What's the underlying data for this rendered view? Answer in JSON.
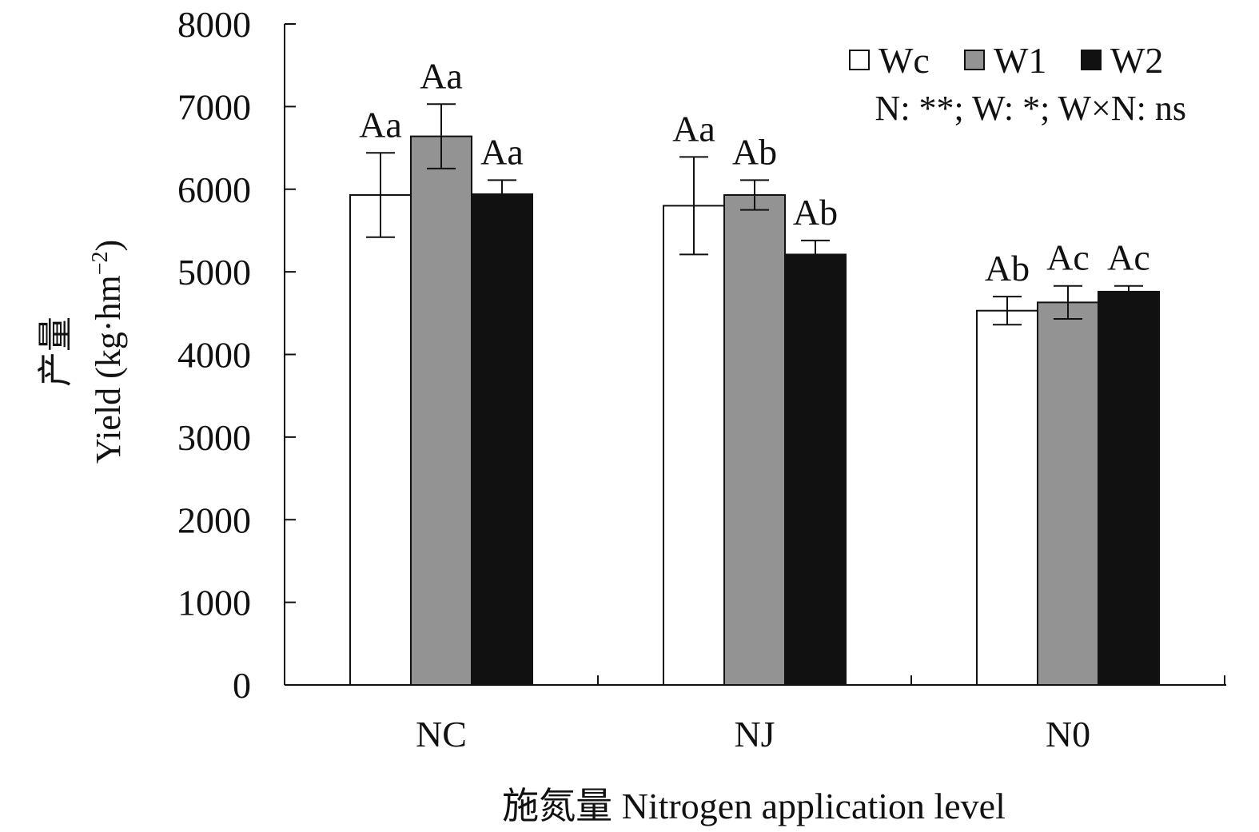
{
  "chart_data": {
    "type": "bar",
    "xlabel": "施氮量 Nitrogen application level",
    "ylabel_cn": "产量",
    "ylabel": "Yield (kg·hm",
    "ylabel_sup": "−2",
    "ylabel_close": ")",
    "ylim": [
      0,
      8000
    ],
    "yticks": [
      0,
      1000,
      2000,
      3000,
      4000,
      5000,
      6000,
      7000,
      8000
    ],
    "categories": [
      "NC",
      "NJ",
      "N0"
    ],
    "series": [
      {
        "name": "Wc",
        "color": "#ffffff",
        "values": [
          5930,
          5800,
          4530
        ],
        "errors": [
          510,
          590,
          170
        ],
        "labels": [
          "Aa",
          "Aa",
          "Ab"
        ]
      },
      {
        "name": "W1",
        "color": "#939393",
        "values": [
          6640,
          5930,
          4630
        ],
        "errors": [
          390,
          180,
          200
        ],
        "labels": [
          "Aa",
          "Ab",
          "Ac"
        ]
      },
      {
        "name": "W2",
        "color": "#111111",
        "values": [
          5940,
          5210,
          4760
        ],
        "errors": [
          170,
          170,
          70
        ],
        "labels": [
          "Aa",
          "Ab",
          "Ac"
        ]
      }
    ],
    "annotation": "N: **; W: *; W×N: ns",
    "legend_position": "top-right",
    "grid": false
  }
}
